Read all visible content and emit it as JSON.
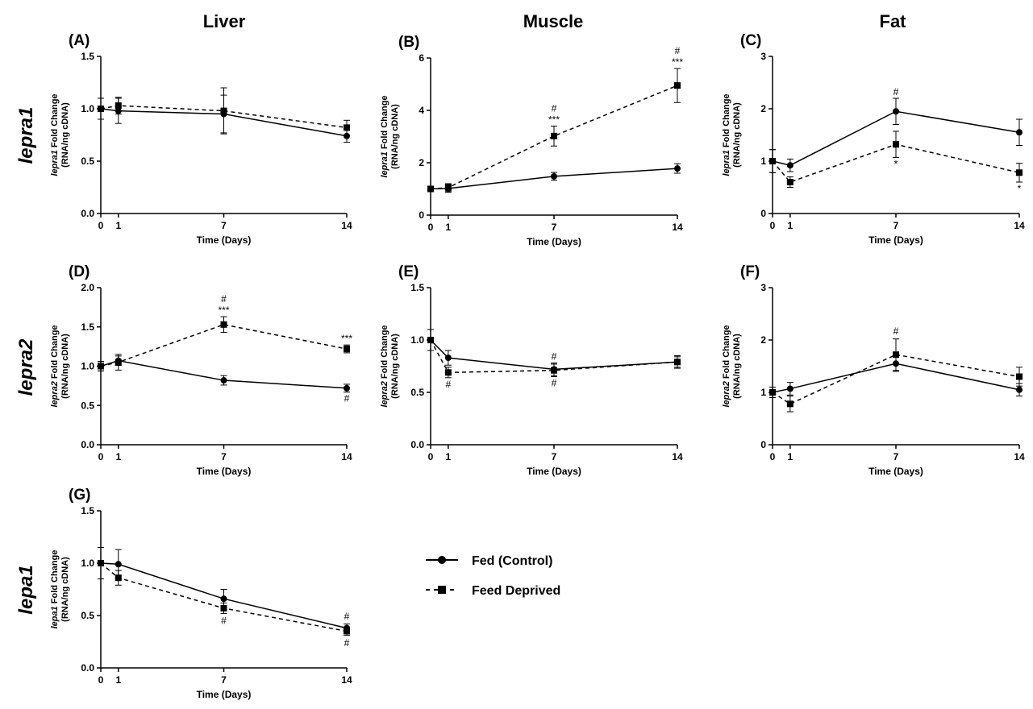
{
  "column_titles": [
    "Liver",
    "Muscle",
    "Fat"
  ],
  "row_titles": [
    "lepra1",
    "lepra2",
    "lepa1"
  ],
  "legend": {
    "fed_label": "Fed (Control)",
    "deprived_label": "Feed Deprived"
  },
  "chart_data": [
    {
      "type": "line",
      "panel": "(A)",
      "gene": "lepra1",
      "ylabel_suffix": " Fold Change",
      "ylabel_unit": "(RNA/ng cDNA)",
      "xlabel": "Time (Days)",
      "x": [
        0,
        1,
        7,
        14
      ],
      "xlim": [
        0,
        14
      ],
      "ylim": [
        0,
        1.5
      ],
      "yticks": [
        0.0,
        0.5,
        1.0,
        1.5
      ],
      "ytick_labels": [
        "0.0",
        "0.5",
        "1.0",
        "1.5"
      ],
      "series": [
        {
          "name": "Fed (Control)",
          "values": [
            1.0,
            0.98,
            0.95,
            0.74
          ],
          "errors": [
            0.1,
            0.12,
            0.18,
            0.06
          ],
          "marker": "circle",
          "dashed": false
        },
        {
          "name": "Feed Deprived",
          "values": [
            1.0,
            1.03,
            0.98,
            0.82
          ],
          "errors": [
            0.1,
            0.08,
            0.22,
            0.07
          ],
          "marker": "square",
          "dashed": true
        }
      ],
      "annotations": []
    },
    {
      "type": "line",
      "panel": "(B)",
      "gene": "lepra1",
      "ylabel_suffix": " Fold Change",
      "ylabel_unit": "(RNA/ng cDNA)",
      "xlabel": "Time (Days)",
      "x": [
        0,
        1,
        7,
        14
      ],
      "xlim": [
        0,
        14
      ],
      "ylim": [
        0,
        6
      ],
      "yticks": [
        0,
        2,
        4,
        6
      ],
      "ytick_labels": [
        "0",
        "2",
        "4",
        "6"
      ],
      "series": [
        {
          "name": "Fed (Control)",
          "values": [
            1.0,
            1.02,
            1.48,
            1.78
          ],
          "errors": [
            0.1,
            0.15,
            0.15,
            0.18
          ],
          "marker": "circle",
          "dashed": false
        },
        {
          "name": "Feed Deprived",
          "values": [
            1.0,
            1.05,
            3.02,
            4.95
          ],
          "errors": [
            0.1,
            0.15,
            0.38,
            0.65
          ],
          "marker": "square",
          "dashed": true
        }
      ],
      "annotations": [
        {
          "x": 7,
          "y": 3.4,
          "lines": [
            "***",
            "#"
          ],
          "position": "above"
        },
        {
          "x": 14,
          "y": 5.6,
          "lines": [
            "***",
            "#"
          ],
          "position": "above"
        }
      ]
    },
    {
      "type": "line",
      "panel": "(C)",
      "gene": "lepra1",
      "ylabel_suffix": " Fold Change",
      "ylabel_unit": "(RNA/ng cDNA)",
      "xlabel": "Time (Days)",
      "x": [
        0,
        1,
        7,
        14
      ],
      "xlim": [
        0,
        14
      ],
      "ylim": [
        0,
        3
      ],
      "yticks": [
        0,
        1,
        2,
        3
      ],
      "ytick_labels": [
        "0",
        "1",
        "2",
        "3"
      ],
      "series": [
        {
          "name": "Fed (Control)",
          "values": [
            1.0,
            0.92,
            1.95,
            1.55
          ],
          "errors": [
            0.22,
            0.12,
            0.25,
            0.25
          ],
          "marker": "circle",
          "dashed": false
        },
        {
          "name": "Feed Deprived",
          "values": [
            1.0,
            0.6,
            1.32,
            0.78
          ],
          "errors": [
            0.22,
            0.1,
            0.25,
            0.18
          ],
          "marker": "square",
          "dashed": true
        }
      ],
      "annotations": [
        {
          "x": 7,
          "y": 2.2,
          "lines": [
            "#"
          ],
          "position": "above"
        },
        {
          "x": 7,
          "y": 1.07,
          "lines": [
            "*"
          ],
          "position": "below"
        },
        {
          "x": 14,
          "y": 0.6,
          "lines": [
            "*"
          ],
          "position": "below"
        }
      ]
    },
    {
      "type": "line",
      "panel": "(D)",
      "gene": "lepra2",
      "ylabel_suffix": " Fold Change",
      "ylabel_unit": "(RNA/ng cDNA)",
      "xlabel": "Time (Days)",
      "x": [
        0,
        1,
        7,
        14
      ],
      "xlim": [
        0,
        14
      ],
      "ylim": [
        0,
        2.0
      ],
      "yticks": [
        0.0,
        0.5,
        1.0,
        1.5,
        2.0
      ],
      "ytick_labels": [
        "0.0",
        "0.5",
        "1.0",
        "1.5",
        "2.0"
      ],
      "series": [
        {
          "name": "Fed (Control)",
          "values": [
            1.0,
            1.07,
            0.82,
            0.72
          ],
          "errors": [
            0.06,
            0.06,
            0.06,
            0.05
          ],
          "marker": "circle",
          "dashed": false
        },
        {
          "name": "Feed Deprived",
          "values": [
            1.0,
            1.05,
            1.53,
            1.22
          ],
          "errors": [
            0.06,
            0.1,
            0.1,
            0.05
          ],
          "marker": "square",
          "dashed": true
        }
      ],
      "annotations": [
        {
          "x": 7,
          "y": 1.63,
          "lines": [
            "***",
            "#"
          ],
          "position": "above"
        },
        {
          "x": 14,
          "y": 1.27,
          "lines": [
            "***"
          ],
          "position": "above"
        },
        {
          "x": 14,
          "y": 0.67,
          "lines": [
            "#"
          ],
          "position": "below"
        }
      ]
    },
    {
      "type": "line",
      "panel": "(E)",
      "gene": "lepra2",
      "ylabel_suffix": " Fold Change",
      "ylabel_unit": "(RNA/ng cDNA)",
      "xlabel": "Time (Days)",
      "x": [
        0,
        1,
        7,
        14
      ],
      "xlim": [
        0,
        14
      ],
      "ylim": [
        0,
        1.5
      ],
      "yticks": [
        0.0,
        0.5,
        1.0,
        1.5
      ],
      "ytick_labels": [
        "0.0",
        "0.5",
        "1.0",
        "1.5"
      ],
      "series": [
        {
          "name": "Fed (Control)",
          "values": [
            1.0,
            0.83,
            0.72,
            0.79
          ],
          "errors": [
            0.1,
            0.07,
            0.06,
            0.05
          ],
          "marker": "circle",
          "dashed": false
        },
        {
          "name": "Feed Deprived",
          "values": [
            1.0,
            0.69,
            0.71,
            0.79
          ],
          "errors": [
            0.1,
            0.05,
            0.06,
            0.06
          ],
          "marker": "square",
          "dashed": true
        }
      ],
      "annotations": [
        {
          "x": 1,
          "y": 0.64,
          "lines": [
            "#"
          ],
          "position": "below"
        },
        {
          "x": 7,
          "y": 0.78,
          "lines": [
            "#"
          ],
          "position": "above"
        },
        {
          "x": 7,
          "y": 0.65,
          "lines": [
            "#"
          ],
          "position": "below"
        }
      ]
    },
    {
      "type": "line",
      "panel": "(F)",
      "gene": "lepra2",
      "ylabel_suffix": " Fold Change",
      "ylabel_unit": "(RNA/ng cDNA)",
      "xlabel": "Time (Days)",
      "x": [
        0,
        1,
        7,
        14
      ],
      "xlim": [
        0,
        14
      ],
      "ylim": [
        0,
        3
      ],
      "yticks": [
        0,
        1,
        2,
        3
      ],
      "ytick_labels": [
        "0",
        "1",
        "2",
        "3"
      ],
      "series": [
        {
          "name": "Fed (Control)",
          "values": [
            1.0,
            1.07,
            1.55,
            1.05
          ],
          "errors": [
            0.1,
            0.12,
            0.15,
            0.12
          ],
          "marker": "circle",
          "dashed": false
        },
        {
          "name": "Feed Deprived",
          "values": [
            1.0,
            0.78,
            1.72,
            1.3
          ],
          "errors": [
            0.1,
            0.15,
            0.3,
            0.18
          ],
          "marker": "square",
          "dashed": true
        }
      ],
      "annotations": [
        {
          "x": 7,
          "y": 2.05,
          "lines": [
            "#"
          ],
          "position": "above"
        }
      ]
    },
    {
      "type": "line",
      "panel": "(G)",
      "gene": "lepa1",
      "ylabel_suffix": " Fold Change",
      "ylabel_unit": "(RNA/ng cDNA)",
      "xlabel": "Time (Days)",
      "x": [
        0,
        1,
        7,
        14
      ],
      "xlim": [
        0,
        14
      ],
      "ylim": [
        0,
        1.5
      ],
      "yticks": [
        0.0,
        0.5,
        1.0,
        1.5
      ],
      "ytick_labels": [
        "0.0",
        "0.5",
        "1.0",
        "1.5"
      ],
      "series": [
        {
          "name": "Fed (Control)",
          "values": [
            1.0,
            0.99,
            0.66,
            0.38
          ],
          "errors": [
            0.15,
            0.14,
            0.09,
            0.04
          ],
          "marker": "circle",
          "dashed": false
        },
        {
          "name": "Feed Deprived",
          "values": [
            1.0,
            0.86,
            0.57,
            0.35
          ],
          "errors": [
            0.15,
            0.07,
            0.05,
            0.04
          ],
          "marker": "square",
          "dashed": true
        }
      ],
      "annotations": [
        {
          "x": 7,
          "y": 0.51,
          "lines": [
            "#"
          ],
          "position": "below"
        },
        {
          "x": 14,
          "y": 0.43,
          "lines": [
            "#"
          ],
          "position": "above"
        },
        {
          "x": 14,
          "y": 0.3,
          "lines": [
            "#"
          ],
          "position": "below"
        }
      ]
    }
  ]
}
